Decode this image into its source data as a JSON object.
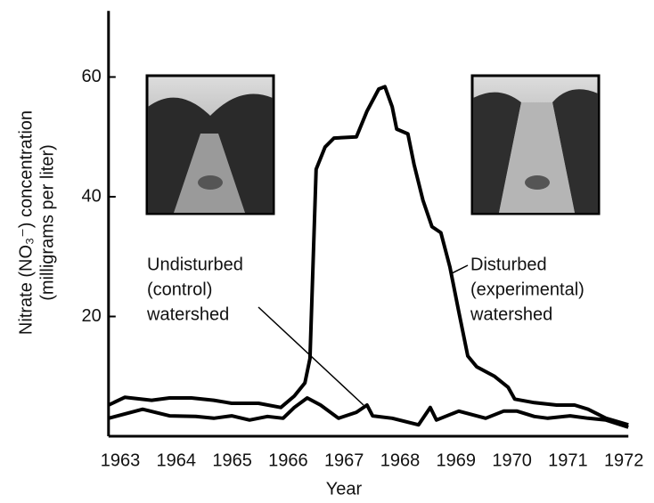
{
  "chart_data": {
    "type": "line",
    "x_label": "Year",
    "y_label": [
      "Nitrate (NO₃⁻) concentration",
      "(milligrams per liter)"
    ],
    "xlim": [
      1962.79,
      1972.08
    ],
    "xticks": [
      1963,
      1964,
      1965,
      1966,
      1967,
      1968,
      1969,
      1970,
      1971,
      1972
    ],
    "ylim": [
      0,
      70
    ],
    "yticks": [
      20,
      40,
      60
    ],
    "series": [
      {
        "label": [
          "Disturbed",
          "(experimental)",
          "watershed"
        ],
        "color": "#000000",
        "x": [
          1962.79,
          1963.08,
          1963.56,
          1963.88,
          1964.27,
          1964.67,
          1964.99,
          1965.47,
          1965.87,
          1966.11,
          1966.3,
          1966.39,
          1966.5,
          1966.66,
          1966.82,
          1967.22,
          1967.41,
          1967.62,
          1967.73,
          1967.86,
          1967.94,
          1968.14,
          1968.25,
          1968.41,
          1968.57,
          1968.73,
          1968.89,
          1969.05,
          1969.21,
          1969.37,
          1969.69,
          1969.93,
          1970.05,
          1970.4,
          1970.8,
          1971.12,
          1971.36,
          1971.68,
          1972.08
        ],
        "values": [
          5.2,
          6.5,
          6,
          6.4,
          6.4,
          6,
          5.5,
          5.5,
          4.8,
          6.7,
          8.9,
          13,
          44.6,
          48.3,
          49.8,
          50,
          54.3,
          58,
          58.4,
          55,
          51.3,
          50.5,
          45.4,
          39.4,
          35,
          34,
          28.3,
          20.8,
          13.4,
          11.6,
          10,
          8.2,
          6.2,
          5.6,
          5.2,
          5.2,
          4.5,
          3,
          1.9
        ]
      },
      {
        "label": [
          "Undisturbed",
          "(control)",
          "watershed"
        ],
        "color": "#000000",
        "x": [
          1962.79,
          1963.4,
          1963.88,
          1964.35,
          1964.67,
          1964.99,
          1965.31,
          1965.63,
          1965.91,
          1966.11,
          1966.34,
          1966.58,
          1966.9,
          1967.22,
          1967.41,
          1967.51,
          1967.86,
          1968.33,
          1968.54,
          1968.65,
          1969.05,
          1969.53,
          1969.85,
          1970.09,
          1970.4,
          1970.64,
          1971.04,
          1971.36,
          1971.68,
          1972.08
        ],
        "values": [
          3,
          4.5,
          3.4,
          3.3,
          3,
          3.4,
          2.7,
          3.3,
          3,
          4.8,
          6.4,
          5.2,
          3,
          4,
          5.2,
          3.4,
          3,
          1.9,
          4.8,
          2.7,
          4.2,
          3,
          4.2,
          4.2,
          3.3,
          3,
          3.4,
          3,
          2.7,
          1.5
        ]
      }
    ]
  }
}
